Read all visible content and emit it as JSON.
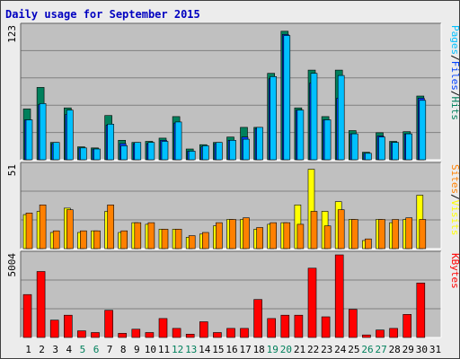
{
  "title": "Daily usage for September 2015",
  "colors": {
    "frame_bg": "#ececec",
    "title": "#0000c0",
    "plot_bg": "#c0c0c0",
    "grid": "#808080",
    "hits": "#00805c",
    "files": "#0040ff",
    "pages": "#00c0ff",
    "visits": "#ffff00",
    "sites": "#ff8000",
    "kbytes": "#ff0000",
    "weekend_label": "#00805c",
    "weekday_label": "#000080",
    "legend_sep": "#000000"
  },
  "chart_data": [
    {
      "type": "bar",
      "panel": "hits-files-pages",
      "y_max_label": "123",
      "ylim": [
        0,
        123
      ],
      "legend": [
        "Pages",
        "Files",
        "Hits"
      ],
      "categories": [
        "1",
        "2",
        "3",
        "4",
        "5",
        "6",
        "7",
        "8",
        "9",
        "10",
        "11",
        "12",
        "13",
        "14",
        "15",
        "16",
        "17",
        "18",
        "19",
        "20",
        "21",
        "22",
        "23",
        "24",
        "25",
        "26",
        "27",
        "28",
        "29",
        "30",
        "31"
      ],
      "series": [
        {
          "name": "Hits",
          "color_key": "hits",
          "values": [
            47,
            67,
            16,
            48,
            12,
            11,
            41,
            18,
            16,
            17,
            20,
            40,
            10,
            14,
            16,
            21,
            30,
            30,
            80,
            119,
            48,
            83,
            40,
            83,
            27,
            7,
            25,
            17,
            26,
            59,
            0
          ]
        },
        {
          "name": "Files",
          "color_key": "files",
          "values": [
            37,
            51,
            15,
            42,
            11,
            10,
            32,
            15,
            15,
            15,
            18,
            34,
            8,
            12,
            15,
            18,
            21,
            29,
            75,
            116,
            46,
            71,
            37,
            57,
            24,
            6,
            22,
            16,
            24,
            57,
            0
          ]
        },
        {
          "name": "Pages",
          "color_key": "pages",
          "values": [
            37,
            52,
            16,
            46,
            11,
            10,
            33,
            13,
            16,
            16,
            17,
            35,
            8,
            13,
            16,
            18,
            19,
            30,
            77,
            115,
            46,
            80,
            37,
            78,
            24,
            6,
            21,
            16,
            24,
            55,
            0
          ]
        }
      ]
    },
    {
      "type": "bar",
      "panel": "visits-sites",
      "y_max_label": "51",
      "ylim": [
        0,
        51
      ],
      "legend": [
        "Sites",
        "Visits"
      ],
      "categories": [
        "1",
        "2",
        "3",
        "4",
        "5",
        "6",
        "7",
        "8",
        "9",
        "10",
        "11",
        "12",
        "13",
        "14",
        "15",
        "16",
        "17",
        "18",
        "19",
        "20",
        "21",
        "22",
        "23",
        "24",
        "25",
        "26",
        "27",
        "28",
        "29",
        "30",
        "31"
      ],
      "series": [
        {
          "name": "Visits",
          "color_key": "visits",
          "values": [
            21,
            23,
            10,
            25,
            10,
            11,
            23,
            10,
            16,
            15,
            12,
            12,
            7,
            9,
            14,
            18,
            18,
            12,
            15,
            16,
            27,
            49,
            23,
            29,
            18,
            5,
            18,
            16,
            18,
            33,
            0
          ]
        },
        {
          "name": "Sites",
          "color_key": "sites",
          "values": [
            22,
            27,
            11,
            24,
            11,
            11,
            27,
            11,
            16,
            16,
            12,
            12,
            8,
            10,
            16,
            18,
            19,
            13,
            16,
            16,
            15,
            23,
            14,
            24,
            18,
            6,
            18,
            18,
            19,
            18,
            0
          ]
        }
      ]
    },
    {
      "type": "bar",
      "panel": "kbytes",
      "y_max_label": "5004",
      "ylim": [
        0,
        5004
      ],
      "legend": [
        "KBytes"
      ],
      "categories": [
        "1",
        "2",
        "3",
        "4",
        "5",
        "6",
        "7",
        "8",
        "9",
        "10",
        "11",
        "12",
        "13",
        "14",
        "15",
        "16",
        "17",
        "18",
        "19",
        "20",
        "21",
        "22",
        "23",
        "24",
        "25",
        "26",
        "27",
        "28",
        "29",
        "30",
        "31"
      ],
      "series": [
        {
          "name": "KBytes",
          "color_key": "kbytes",
          "values": [
            2600,
            4000,
            1050,
            1350,
            400,
            300,
            1650,
            250,
            500,
            300,
            1150,
            550,
            200,
            950,
            300,
            550,
            550,
            2300,
            1150,
            1350,
            1350,
            4200,
            1250,
            5004,
            1700,
            150,
            450,
            550,
            1400,
            3300,
            0
          ]
        }
      ]
    }
  ],
  "weekend_days": [
    5,
    6,
    12,
    13,
    19,
    20,
    26,
    27
  ]
}
